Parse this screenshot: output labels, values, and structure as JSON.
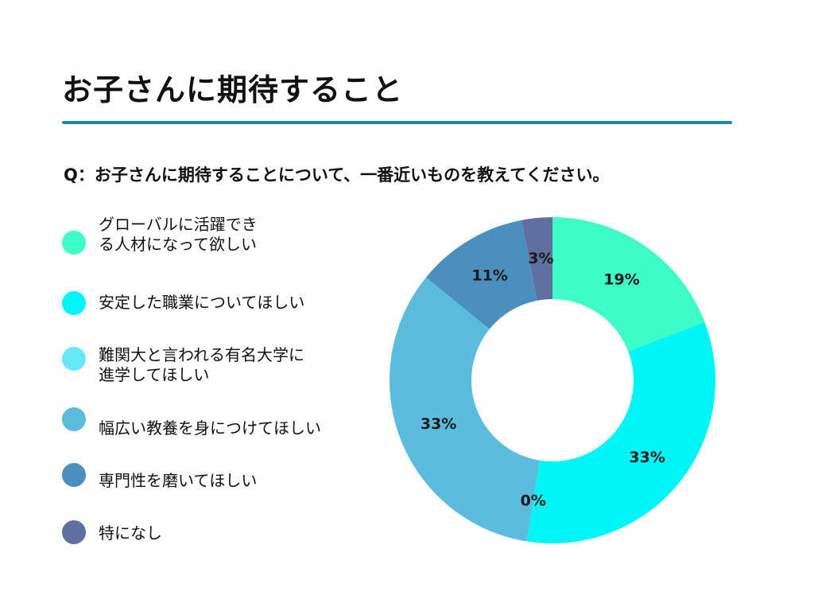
{
  "page": {
    "title": "お子さんに期待すること",
    "question": "Q：お子さんに期待することについて、一番近いものを教えてください。",
    "accent_color": "#1b8ca3"
  },
  "chart_data": {
    "type": "pie",
    "donut": true,
    "legend_position": "left",
    "categories": [
      "グローバルに活躍でき\nる人材になって欲しい",
      "安定した職業についてほしい",
      "難関大と言われる有名大学に\n進学してほしい",
      "幅広い教養を身につけてほしい",
      "専門性を磨いてほしい",
      "特になし"
    ],
    "values": [
      19,
      33,
      0,
      33,
      11,
      3
    ],
    "data_labels": [
      "19%",
      "33%",
      "0%",
      "33%",
      "11%",
      "3%"
    ],
    "colors": [
      "#3dfcc8",
      "#00f6f6",
      "#66e8f6",
      "#5bbcde",
      "#4a8fbe",
      "#5e6fa0"
    ]
  }
}
